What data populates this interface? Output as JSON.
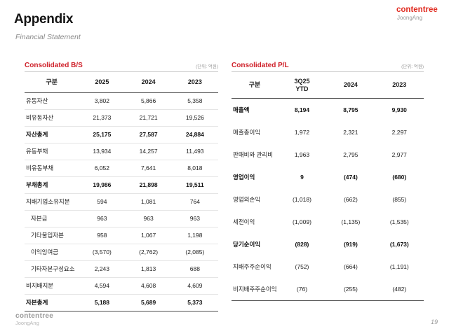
{
  "slide": {
    "title": "Appendix",
    "subtitle": "Financial Statement",
    "page_number": "19"
  },
  "brand": {
    "name": "contentree",
    "sub": "JoongAng",
    "accent_red": "#e02b20"
  },
  "bs_table": {
    "title": "Consolidated B/S",
    "unit": "(단위: 억원)",
    "columns": [
      "구분",
      "2025",
      "2024",
      "2023"
    ],
    "rows": [
      {
        "label": "유동자산",
        "values": [
          "3,802",
          "5,866",
          "5,358"
        ]
      },
      {
        "label": "비유동자산",
        "values": [
          "21,373",
          "21,721",
          "19,526"
        ]
      },
      {
        "label": "자산총계",
        "values": [
          "25,175",
          "27,587",
          "24,884"
        ]
      },
      {
        "label": "유동부채",
        "values": [
          "13,934",
          "14,257",
          "11,493"
        ]
      },
      {
        "label": "비유동부채",
        "values": [
          "6,052",
          "7,641",
          "8,018"
        ]
      },
      {
        "label": "부채총계",
        "values": [
          "19,986",
          "21,898",
          "19,511"
        ]
      },
      {
        "label": "지배기업소유지분",
        "values": [
          "594",
          "1,081",
          "764"
        ]
      },
      {
        "label": "자본금",
        "values": [
          "963",
          "963",
          "963"
        ]
      },
      {
        "label": "기타불입자본",
        "values": [
          "958",
          "1,067",
          "1,198"
        ]
      },
      {
        "label": "이익잉여금",
        "values": [
          "(3,570)",
          "(2,762)",
          "(2,085)"
        ]
      },
      {
        "label": "기타자본구성요소",
        "values": [
          "2,243",
          "1,813",
          "688"
        ]
      },
      {
        "label": "비지배지분",
        "values": [
          "4,594",
          "4,608",
          "4,609"
        ]
      },
      {
        "label": "자본총계",
        "values": [
          "5,188",
          "5,689",
          "5,373"
        ]
      }
    ]
  },
  "pl_table": {
    "title": "Consolidated P/L",
    "unit": "(단위: 억원)",
    "columns": [
      "구분",
      "3Q25\nYTD",
      "2024",
      "2023"
    ],
    "rows": [
      {
        "label": "매출액",
        "values": [
          "8,194",
          "8,795",
          "9,930"
        ]
      },
      {
        "label": "매출총이익",
        "values": [
          "1,972",
          "2,321",
          "2,297"
        ]
      },
      {
        "label": "판매비와 관리비",
        "values": [
          "1,963",
          "2,795",
          "2,977"
        ]
      },
      {
        "label": "영업이익",
        "values": [
          "9",
          "(474)",
          "(680)"
        ]
      },
      {
        "label": "영업외손익",
        "values": [
          "(1,018)",
          "(662)",
          "(855)"
        ]
      },
      {
        "label": "세전이익",
        "values": [
          "(1,009)",
          "(1,135)",
          "(1,535)"
        ]
      },
      {
        "label": "당기순이익",
        "values": [
          "(828)",
          "(919)",
          "(1,673)"
        ]
      },
      {
        "label": "지배주주순이익",
        "values": [
          "(752)",
          "(664)",
          "(1,191)"
        ]
      },
      {
        "label": "비지배주주순이익",
        "values": [
          "(76)",
          "(255)",
          "(482)"
        ]
      }
    ]
  }
}
